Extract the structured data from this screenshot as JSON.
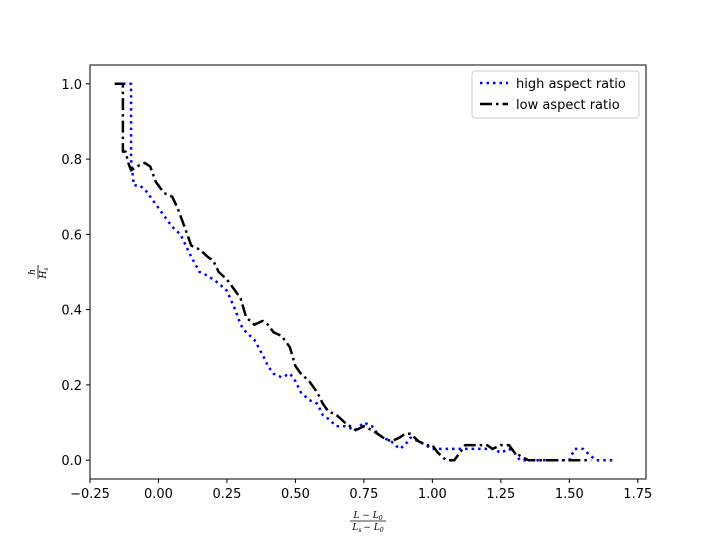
{
  "chart_data": {
    "type": "line",
    "xlabel": {
      "numerator": "L − L",
      "numerator_sub": "0",
      "denominator_a": "L",
      "denominator_a_sub": "s",
      "denominator_b": "− L",
      "denominator_b_sub": "0"
    },
    "ylabel": {
      "numerator": "h",
      "denominator": "H",
      "denominator_sub": "s"
    },
    "xlim": [
      -0.25,
      1.78
    ],
    "ylim": [
      -0.05,
      1.05
    ],
    "xticks": [
      -0.25,
      0.0,
      0.25,
      0.5,
      0.75,
      1.0,
      1.25,
      1.5,
      1.75
    ],
    "xtick_labels": [
      "−0.25",
      "0.00",
      "0.25",
      "0.50",
      "0.75",
      "1.00",
      "1.25",
      "1.50",
      "1.75"
    ],
    "yticks": [
      0.0,
      0.2,
      0.4,
      0.6,
      0.8,
      1.0
    ],
    "ytick_labels": [
      "0.0",
      "0.2",
      "0.4",
      "0.6",
      "0.8",
      "1.0"
    ],
    "grid": false,
    "legend_position": "top-right",
    "series": [
      {
        "name": "high aspect ratio",
        "color": "#0000ff",
        "style": "dotted",
        "x": [
          -0.13,
          -0.1,
          -0.1,
          -0.1,
          -0.09,
          -0.07,
          -0.05,
          -0.03,
          0.0,
          0.03,
          0.05,
          0.08,
          0.1,
          0.12,
          0.15,
          0.18,
          0.22,
          0.25,
          0.28,
          0.3,
          0.32,
          0.35,
          0.38,
          0.4,
          0.42,
          0.45,
          0.48,
          0.5,
          0.52,
          0.55,
          0.58,
          0.6,
          0.62,
          0.65,
          0.68,
          0.72,
          0.75,
          0.78,
          0.8,
          0.82,
          0.85,
          0.88,
          0.9,
          0.92,
          0.95,
          1.0,
          1.05,
          1.1,
          1.15,
          1.2,
          1.22,
          1.25,
          1.28,
          1.3,
          1.32,
          1.35,
          1.4,
          1.45,
          1.5,
          1.52,
          1.55,
          1.58,
          1.6,
          1.63,
          1.66
        ],
        "y": [
          1.0,
          1.0,
          0.95,
          0.8,
          0.73,
          0.73,
          0.72,
          0.7,
          0.67,
          0.64,
          0.62,
          0.6,
          0.57,
          0.54,
          0.5,
          0.49,
          0.47,
          0.45,
          0.4,
          0.36,
          0.34,
          0.32,
          0.28,
          0.25,
          0.23,
          0.22,
          0.23,
          0.21,
          0.18,
          0.16,
          0.15,
          0.12,
          0.11,
          0.09,
          0.09,
          0.08,
          0.1,
          0.09,
          0.07,
          0.06,
          0.05,
          0.03,
          0.04,
          0.06,
          0.05,
          0.03,
          0.03,
          0.03,
          0.03,
          0.03,
          0.03,
          0.02,
          0.03,
          0.02,
          0.0,
          0.0,
          0.0,
          0.0,
          0.0,
          0.03,
          0.03,
          0.01,
          0.0,
          0.0,
          0.0
        ]
      },
      {
        "name": "low aspect ratio",
        "color": "#000000",
        "style": "dashdot",
        "x": [
          -0.16,
          -0.13,
          -0.13,
          -0.13,
          -0.12,
          -0.11,
          -0.1,
          -0.08,
          -0.05,
          -0.03,
          -0.01,
          0.02,
          0.05,
          0.07,
          0.1,
          0.12,
          0.15,
          0.18,
          0.2,
          0.22,
          0.25,
          0.28,
          0.3,
          0.32,
          0.35,
          0.38,
          0.4,
          0.42,
          0.45,
          0.48,
          0.5,
          0.52,
          0.55,
          0.58,
          0.6,
          0.62,
          0.65,
          0.68,
          0.7,
          0.72,
          0.75,
          0.78,
          0.8,
          0.82,
          0.85,
          0.88,
          0.9,
          0.92,
          0.95,
          0.98,
          1.0,
          1.02,
          1.05,
          1.08,
          1.1,
          1.12,
          1.15,
          1.2,
          1.22,
          1.25,
          1.28,
          1.3,
          1.35,
          1.4,
          1.5,
          1.55,
          1.58
        ],
        "y": [
          1.0,
          1.0,
          0.95,
          0.82,
          0.82,
          0.79,
          0.77,
          0.78,
          0.79,
          0.78,
          0.74,
          0.71,
          0.7,
          0.67,
          0.61,
          0.57,
          0.56,
          0.54,
          0.53,
          0.5,
          0.48,
          0.45,
          0.43,
          0.38,
          0.36,
          0.37,
          0.36,
          0.34,
          0.33,
          0.3,
          0.25,
          0.23,
          0.21,
          0.18,
          0.15,
          0.13,
          0.12,
          0.1,
          0.09,
          0.08,
          0.09,
          0.08,
          0.07,
          0.06,
          0.05,
          0.06,
          0.07,
          0.07,
          0.05,
          0.04,
          0.04,
          0.02,
          0.0,
          0.0,
          0.02,
          0.04,
          0.04,
          0.04,
          0.03,
          0.04,
          0.04,
          0.02,
          0.0,
          0.0,
          0.0,
          0.0,
          0.0
        ]
      }
    ]
  }
}
